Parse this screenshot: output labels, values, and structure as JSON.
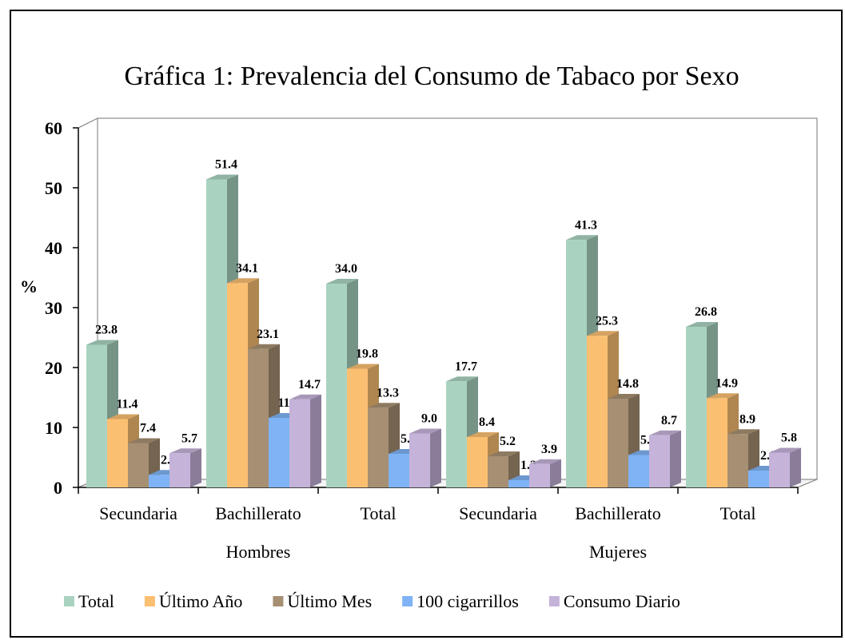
{
  "chart_data": {
    "type": "bar3d",
    "title": "Gráfica 1: Prevalencia del Consumo de Tabaco por Sexo",
    "ylabel": "%",
    "categories": [
      "Secundaria",
      "Bachillerato",
      "Total",
      "Secundaria",
      "Bachillerato",
      "Total"
    ],
    "groups": [
      {
        "label": "Hombres",
        "span": [
          0,
          2
        ]
      },
      {
        "label": "Mujeres",
        "span": [
          3,
          5
        ]
      }
    ],
    "series": [
      {
        "name": "Total",
        "color": "#a9d3c0",
        "values": [
          23.8,
          51.4,
          34.0,
          17.7,
          41.3,
          26.8
        ],
        "value_labels": [
          "23.8",
          "51.4",
          "34.0",
          "17.7",
          "41.3",
          "26.8"
        ]
      },
      {
        "name": "Último Año",
        "color": "#fbbf72",
        "values": [
          11.4,
          34.1,
          19.8,
          8.4,
          25.3,
          14.9
        ],
        "value_labels": [
          "11.4",
          "34.1",
          "19.8",
          "8.4",
          "25.3",
          "14.9"
        ]
      },
      {
        "name": "Último Mes",
        "color": "#a68f72",
        "values": [
          7.4,
          23.1,
          13.3,
          5.2,
          14.8,
          8.9
        ],
        "value_labels": [
          "7.4",
          "23.1",
          "13.3",
          "5.2",
          "14.8",
          "8.9"
        ]
      },
      {
        "name": "100 cigarrillos",
        "color": "#7fb3f5",
        "values": [
          2.1,
          11.6,
          5.6,
          1.2,
          5.4,
          2.8
        ],
        "value_labels": [
          "2.1",
          "11.6",
          "5.6",
          "1.2",
          "5.4",
          "2.8"
        ]
      },
      {
        "name": "Consumo Diario",
        "color": "#c5b3da",
        "values": [
          5.7,
          14.7,
          9.0,
          3.9,
          8.7,
          5.8
        ],
        "value_labels": [
          "5.7",
          "14.7",
          "9.0",
          "3.9",
          "8.7",
          "5.8"
        ]
      }
    ],
    "ylim": [
      0,
      60
    ],
    "yticks": [
      0,
      10,
      20,
      30,
      40,
      50,
      60
    ],
    "legend": "bottom"
  }
}
